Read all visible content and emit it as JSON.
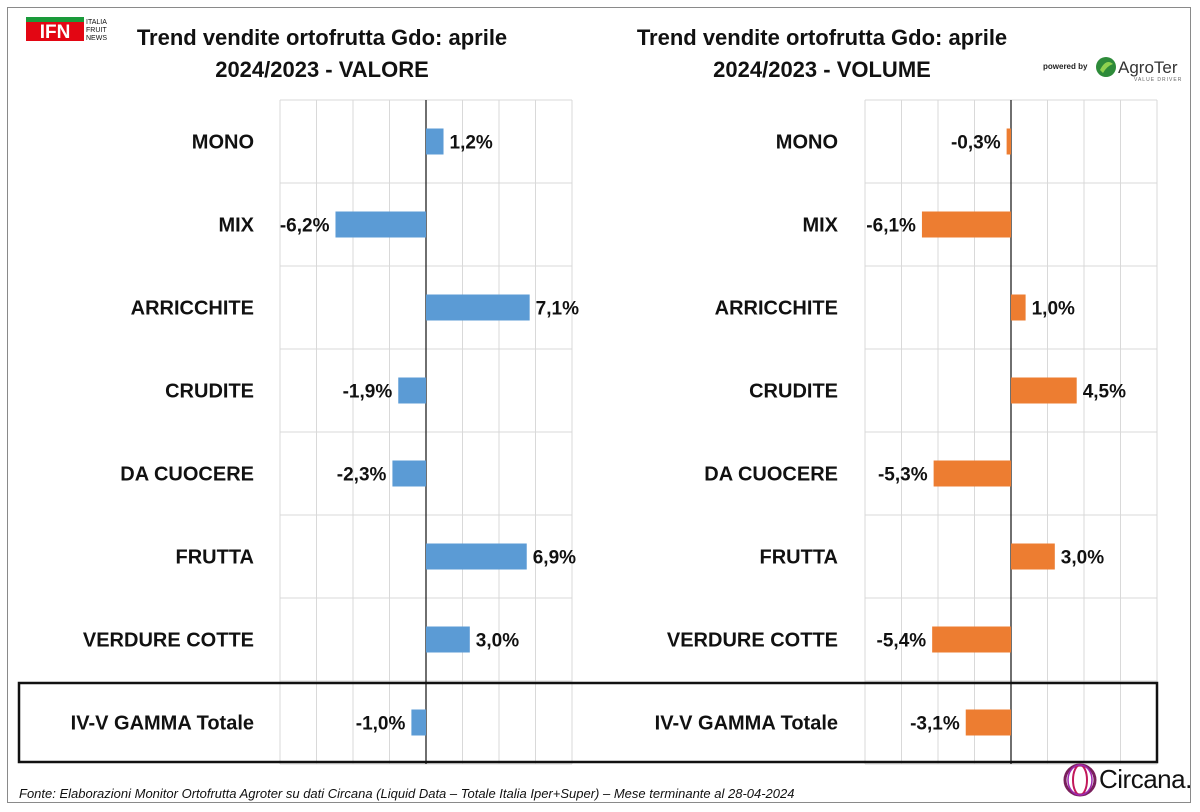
{
  "header": {
    "ifn_logo_text": "IFN",
    "ifn_logo_sub": [
      "ITALIA",
      "FRUIT",
      "NEWS"
    ],
    "powered_by": "powered by",
    "agroter_name": "AgroTer",
    "agroter_sub": "VALUE DRIVER"
  },
  "chart_data": [
    {
      "type": "bar",
      "orientation": "horizontal",
      "title": "Trend vendite ortofrutta Gdo: aprile\n2024/2023 - VALORE",
      "categories": [
        "MONO",
        "MIX",
        "ARRICCHITE",
        "CRUDITE",
        "DA CUOCERE",
        "FRUTTA",
        "VERDURE COTTE",
        "IV-V GAMMA Totale"
      ],
      "values": [
        1.2,
        -6.2,
        7.1,
        -1.9,
        -2.3,
        6.9,
        3.0,
        -1.0
      ],
      "labels": [
        "1,2%",
        "-6,2%",
        "7,1%",
        "-1,9%",
        "-2,3%",
        "6,9%",
        "3,0%",
        "-1,0%"
      ],
      "xlim": [
        -10,
        10
      ],
      "grid": true,
      "color": "#5b9bd5"
    },
    {
      "type": "bar",
      "orientation": "horizontal",
      "title": "Trend vendite ortofrutta Gdo: aprile\n2024/2023 - VOLUME",
      "categories": [
        "MONO",
        "MIX",
        "ARRICCHITE",
        "CRUDITE",
        "DA CUOCERE",
        "FRUTTA",
        "VERDURE COTTE",
        "IV-V GAMMA Totale"
      ],
      "values": [
        -0.3,
        -6.1,
        1.0,
        4.5,
        -5.3,
        3.0,
        -5.4,
        -3.1
      ],
      "labels": [
        "-0,3%",
        "-6,1%",
        "1,0%",
        "4,5%",
        "-5,3%",
        "3,0%",
        "-5,4%",
        "-3,1%"
      ],
      "xlim": [
        -10,
        10
      ],
      "grid": true,
      "color": "#ed7d31"
    }
  ],
  "footer": {
    "source": "Fonte: Elaborazioni Monitor Ortofrutta Agroter su dati Circana (Liquid Data – Totale Italia Iper+Super) – Mese terminante al 28-04-2024",
    "circana_name": "Circana."
  }
}
